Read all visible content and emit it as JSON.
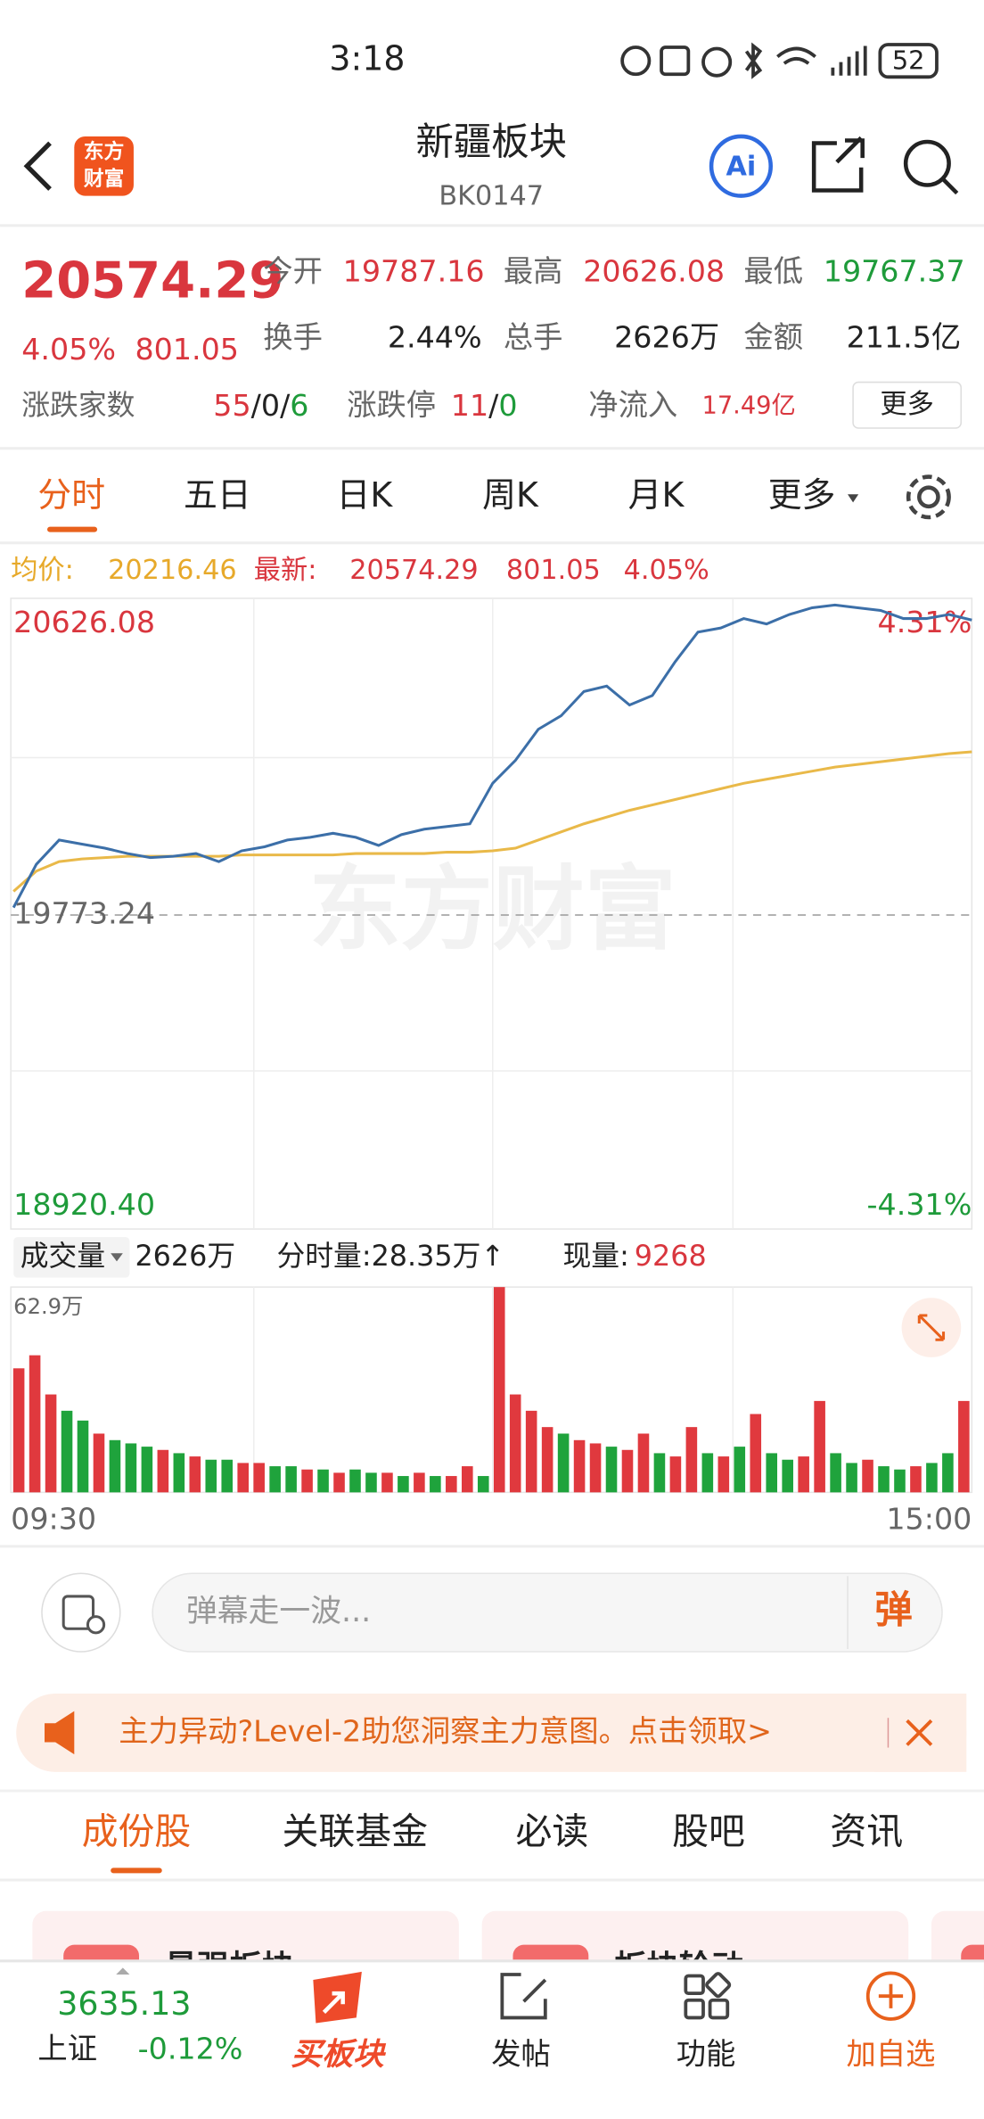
{
  "status": {
    "time": "3:18",
    "battery": "52"
  },
  "header": {
    "logo": [
      "东方",
      "财富"
    ],
    "title": "新疆板块",
    "code": "BK0147"
  },
  "quote": {
    "price": "20574.29",
    "change_pct": "4.05%",
    "change": "801.05",
    "stats": [
      {
        "label": "今开",
        "value": "19787.16"
      },
      {
        "label": "最高",
        "value": "20626.08"
      },
      {
        "label": "最低",
        "value": "19767.37"
      },
      {
        "label": "换手",
        "value": "2.44%"
      },
      {
        "label": "总手",
        "value": "2626万"
      },
      {
        "label": "金额",
        "value": "211.5亿"
      }
    ],
    "breadth": {
      "label": "涨跌家数",
      "values": [
        "55",
        "0",
        "6"
      ],
      "separator": "/"
    },
    "limit": {
      "label": "涨跌停",
      "values": [
        "11",
        "0"
      ],
      "separator": "/"
    },
    "inflow": {
      "label": "净流入",
      "value": "17.49亿"
    },
    "more": "更多"
  },
  "tabs": [
    "分时",
    "五日",
    "日K",
    "周K",
    "月K",
    "更多"
  ],
  "summary": {
    "avg_label": "均价:",
    "avg": "20216.46",
    "last_label": "最新:",
    "last": "20574.29",
    "change": "801.05",
    "pct": "4.05%"
  },
  "watermark": "东方财富",
  "chart_data": [
    {
      "type": "line",
      "ylim": [
        18920.4,
        20626.08
      ],
      "yticks": [
        {
          "value": 20626.08,
          "label": "20626.08"
        },
        {
          "value": 19773.24,
          "label": "19773.24"
        },
        {
          "value": 18920.4,
          "label": "18920.40"
        }
      ],
      "y2lim": [
        -4.31,
        4.31
      ],
      "y2ticks": [
        {
          "value": 4.31,
          "label": "4.31%"
        },
        {
          "value": -4.31,
          "label": "-4.31%"
        }
      ],
      "series": [
        {
          "color": "#3c6fa8",
          "values": [
            19793.5,
            19910.8,
            19976.9,
            19965.9,
            19954.9,
            19940.2,
            19929.2,
            19932.8,
            19940.2,
            19918.2,
            19947.5,
            19958.5,
            19976.9,
            19984.2,
            19995.2,
            19984.2,
            19962.2,
            19991.5,
            20006.2,
            20013.5,
            20020.9,
            20130.9,
            20193.3,
            20277.6,
            20314.3,
            20380.3,
            20395.0,
            20343.7,
            20369.3,
            20461.0,
            20541.7,
            20552.7,
            20578.4,
            20563.7,
            20589.4,
            20607.8,
            20615.1,
            20607.8,
            20600.4,
            20578.4,
            20578.4,
            20589.4,
            20574.29
          ]
        },
        {
          "color": "#e9b949",
          "values": [
            19837.5,
            19892.5,
            19918.2,
            19925.5,
            19929.2,
            19932.8,
            19932.8,
            19932.8,
            19932.8,
            19932.8,
            19936.5,
            19936.5,
            19936.5,
            19936.5,
            19936.5,
            19940.2,
            19940.2,
            19940.2,
            19940.2,
            19943.9,
            19943.9,
            19947.5,
            19954.9,
            19976.9,
            19998.9,
            20020.9,
            20039.2,
            20057.6,
            20072.2,
            20086.9,
            20101.6,
            20116.2,
            20130.9,
            20141.9,
            20152.9,
            20163.9,
            20174.9,
            20182.3,
            20189.6,
            20196.9,
            20204.3,
            20211.6,
            20216.46
          ]
        }
      ]
    },
    {
      "type": "bar",
      "ylim": [
        0,
        62.9
      ],
      "yticks": [
        {
          "value": 62.9,
          "label": "62.9万"
        }
      ],
      "x_labels": [
        "09:30",
        "15:00"
      ],
      "values": [
        38,
        42,
        30,
        25,
        22,
        18,
        16,
        15,
        14,
        13,
        12,
        11,
        10,
        10,
        9,
        9,
        8,
        8,
        7,
        7,
        6,
        7,
        6,
        6,
        5,
        6,
        5,
        5,
        8,
        5,
        62.9,
        30,
        25,
        20,
        18,
        16,
        15,
        14,
        13,
        18,
        12,
        11,
        20,
        12,
        11,
        14,
        24,
        12,
        10,
        11,
        28,
        12,
        9,
        10,
        8,
        7,
        8,
        9,
        12,
        28
      ],
      "colors": [
        "#e0393e",
        "#e0393e",
        "#e0393e",
        "#1fa33c",
        "#1fa33c",
        "#e0393e",
        "#1fa33c",
        "#1fa33c",
        "#1fa33c",
        "#e0393e",
        "#1fa33c",
        "#e0393e",
        "#1fa33c",
        "#1fa33c",
        "#e0393e",
        "#e0393e",
        "#1fa33c",
        "#1fa33c",
        "#e0393e",
        "#1fa33c",
        "#e0393e",
        "#1fa33c",
        "#1fa33c",
        "#e0393e",
        "#1fa33c",
        "#e0393e",
        "#1fa33c",
        "#e0393e",
        "#e0393e",
        "#1fa33c",
        "#e0393e",
        "#e0393e",
        "#e0393e",
        "#e0393e",
        "#1fa33c",
        "#e0393e",
        "#e0393e",
        "#1fa33c",
        "#e0393e",
        "#e0393e",
        "#1fa33c",
        "#e0393e",
        "#e0393e",
        "#1fa33c",
        "#e0393e",
        "#1fa33c",
        "#e0393e",
        "#1fa33c",
        "#1fa33c",
        "#e0393e",
        "#e0393e",
        "#1fa33c",
        "#1fa33c",
        "#e0393e",
        "#1fa33c",
        "#1fa33c",
        "#e0393e",
        "#1fa33c",
        "#1fa33c",
        "#e0393e"
      ]
    }
  ],
  "volume_info": {
    "label": "成交量",
    "total": "2626万",
    "minute": "分时量:28.35万↑",
    "current_label": "现量:",
    "current": "9268"
  },
  "danmaku": {
    "placeholder": "弹幕走一波...",
    "button": "弹"
  },
  "banner": "主力异动?Level-2助您洞察主力意图。点击领取>",
  "section_tabs": [
    "成份股",
    "关联基金",
    "必读",
    "股吧",
    "资讯"
  ],
  "cards": [
    "最强板块",
    "板块轮动"
  ],
  "nav": {
    "index_value": "3635.13",
    "index_name": "上证",
    "index_change": "-0.12%",
    "items": [
      "买板块",
      "发帖",
      "功能",
      "加自选"
    ]
  }
}
